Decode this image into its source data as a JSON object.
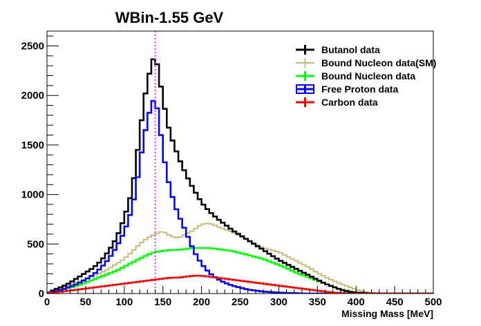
{
  "chart_data": {
    "type": "line",
    "title": "WBin-1.55 GeV",
    "xlabel": "Missing Mass [MeV]",
    "ylabel": "",
    "xlim": [
      0,
      500
    ],
    "ylim": [
      0,
      2650
    ],
    "x_ticks": [
      0,
      50,
      100,
      150,
      200,
      250,
      300,
      350,
      400,
      450,
      500
    ],
    "y_ticks": [
      0,
      500,
      1000,
      1500,
      2000,
      2500
    ],
    "grid": false,
    "legend_position": "top-right",
    "reference_line": {
      "x": 140,
      "color": "#ff00ff",
      "style": "dotted"
    },
    "series": [
      {
        "name": "Butanol data",
        "color": "#000000",
        "x": [
          0,
          10,
          20,
          30,
          40,
          50,
          60,
          70,
          80,
          90,
          100,
          110,
          115,
          120,
          125,
          130,
          135,
          140,
          145,
          150,
          155,
          160,
          170,
          180,
          190,
          200,
          210,
          220,
          230,
          240,
          250,
          260,
          270,
          280,
          290,
          300,
          310,
          320,
          330,
          340,
          350,
          360,
          370,
          380,
          390,
          400,
          410,
          420,
          430,
          440,
          450,
          500
        ],
        "values": [
          0,
          40,
          70,
          110,
          160,
          210,
          260,
          330,
          430,
          560,
          760,
          1030,
          1300,
          1600,
          1900,
          2140,
          2300,
          2430,
          2200,
          1980,
          1750,
          1600,
          1380,
          1200,
          1050,
          920,
          830,
          760,
          700,
          640,
          590,
          540,
          490,
          440,
          390,
          340,
          300,
          260,
          220,
          180,
          140,
          100,
          70,
          40,
          20,
          10,
          5,
          0,
          0,
          0,
          0,
          0
        ]
      },
      {
        "name": "Bound Nucleon data(SM)",
        "color": "#c8bb78",
        "x": [
          0,
          10,
          20,
          30,
          40,
          50,
          60,
          70,
          80,
          90,
          100,
          110,
          120,
          130,
          140,
          150,
          160,
          170,
          180,
          190,
          200,
          210,
          220,
          230,
          240,
          250,
          260,
          270,
          280,
          290,
          300,
          310,
          320,
          330,
          340,
          350,
          360,
          370,
          380,
          390,
          400,
          410,
          420,
          430,
          440,
          450,
          500
        ],
        "values": [
          0,
          30,
          60,
          90,
          120,
          150,
          180,
          210,
          250,
          300,
          350,
          420,
          500,
          560,
          600,
          630,
          580,
          560,
          600,
          640,
          700,
          710,
          680,
          650,
          620,
          580,
          540,
          500,
          460,
          440,
          420,
          380,
          340,
          300,
          260,
          210,
          170,
          130,
          100,
          70,
          40,
          20,
          10,
          5,
          0,
          0,
          0
        ]
      },
      {
        "name": "Bound Nucleon data",
        "color": "#00ff00",
        "x": [
          0,
          10,
          20,
          30,
          40,
          50,
          60,
          70,
          80,
          90,
          100,
          110,
          120,
          130,
          140,
          150,
          160,
          170,
          180,
          190,
          200,
          210,
          220,
          230,
          240,
          250,
          260,
          270,
          280,
          290,
          300,
          310,
          320,
          330,
          340,
          350,
          360,
          370,
          380,
          390,
          400,
          410,
          420,
          430,
          440,
          450,
          500
        ],
        "values": [
          0,
          20,
          40,
          60,
          80,
          110,
          140,
          170,
          200,
          230,
          270,
          310,
          350,
          390,
          420,
          430,
          440,
          440,
          450,
          460,
          460,
          460,
          450,
          440,
          430,
          410,
          390,
          370,
          350,
          320,
          290,
          260,
          220,
          190,
          160,
          130,
          100,
          70,
          40,
          20,
          10,
          5,
          0,
          0,
          0,
          0,
          0
        ]
      },
      {
        "name": "Free Proton data",
        "color": "#0000ff",
        "x": [
          0,
          10,
          20,
          30,
          40,
          50,
          60,
          70,
          80,
          90,
          100,
          110,
          115,
          120,
          125,
          130,
          135,
          140,
          145,
          150,
          155,
          160,
          165,
          170,
          180,
          190,
          200,
          210,
          220,
          230,
          240,
          250,
          260,
          270,
          280,
          290,
          300,
          310,
          320,
          330,
          340,
          350,
          400,
          450,
          500
        ],
        "values": [
          0,
          20,
          40,
          70,
          100,
          140,
          190,
          260,
          350,
          470,
          620,
          850,
          1050,
          1300,
          1550,
          1750,
          1900,
          1990,
          1750,
          1450,
          1200,
          1050,
          900,
          800,
          620,
          430,
          300,
          210,
          150,
          110,
          80,
          60,
          40,
          30,
          20,
          15,
          10,
          5,
          5,
          0,
          0,
          0,
          0,
          0,
          0
        ]
      },
      {
        "name": "Carbon data",
        "color": "#ff0000",
        "x": [
          0,
          10,
          20,
          30,
          40,
          50,
          60,
          70,
          80,
          90,
          100,
          110,
          120,
          130,
          140,
          150,
          160,
          170,
          180,
          190,
          200,
          210,
          220,
          230,
          240,
          250,
          260,
          270,
          280,
          290,
          300,
          310,
          320,
          330,
          340,
          350,
          360,
          370,
          380,
          390,
          400,
          450,
          500
        ],
        "values": [
          0,
          10,
          20,
          30,
          40,
          50,
          60,
          70,
          80,
          90,
          100,
          110,
          120,
          130,
          140,
          150,
          160,
          160,
          170,
          180,
          180,
          170,
          160,
          150,
          140,
          130,
          120,
          110,
          100,
          90,
          80,
          70,
          60,
          50,
          40,
          30,
          20,
          10,
          5,
          0,
          0,
          0,
          0
        ]
      }
    ]
  }
}
